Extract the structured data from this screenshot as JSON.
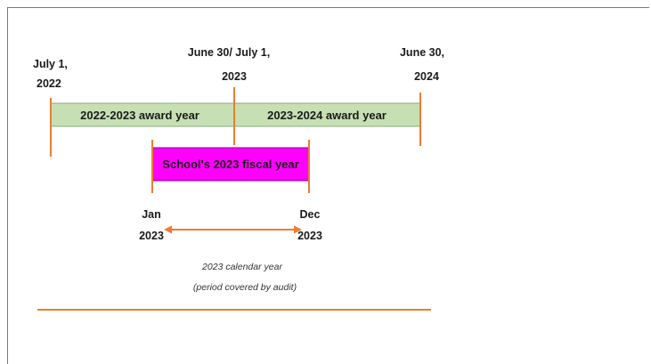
{
  "colors": {
    "orange": "#ed7d31",
    "award_bar_fill": "#c6e0b4",
    "award_bar_stroke": "#8fa981",
    "fiscal_bar_fill": "#ff00ff",
    "fiscal_bar_stroke": "#7a007a"
  },
  "markers": {
    "start": {
      "line1": "July 1,",
      "line2": "2022"
    },
    "middle": {
      "line1": "June 30/ July 1,",
      "line2": "2023"
    },
    "end": {
      "line1": "June 30,",
      "line2": "2024"
    }
  },
  "award_years": {
    "first": "2022-2023 award year",
    "second": "2023-2024 award year"
  },
  "fiscal_year": {
    "label": "School's 2023 fiscal year"
  },
  "calendar": {
    "start": {
      "line1": "Jan",
      "line2": "2023"
    },
    "end": {
      "line1": "Dec",
      "line2": "2023"
    },
    "caption_line1": "2023 calendar year",
    "caption_line2": "(period covered by audit)"
  },
  "icons": {
    "calendar_arrow": "double-headed-arrow"
  }
}
